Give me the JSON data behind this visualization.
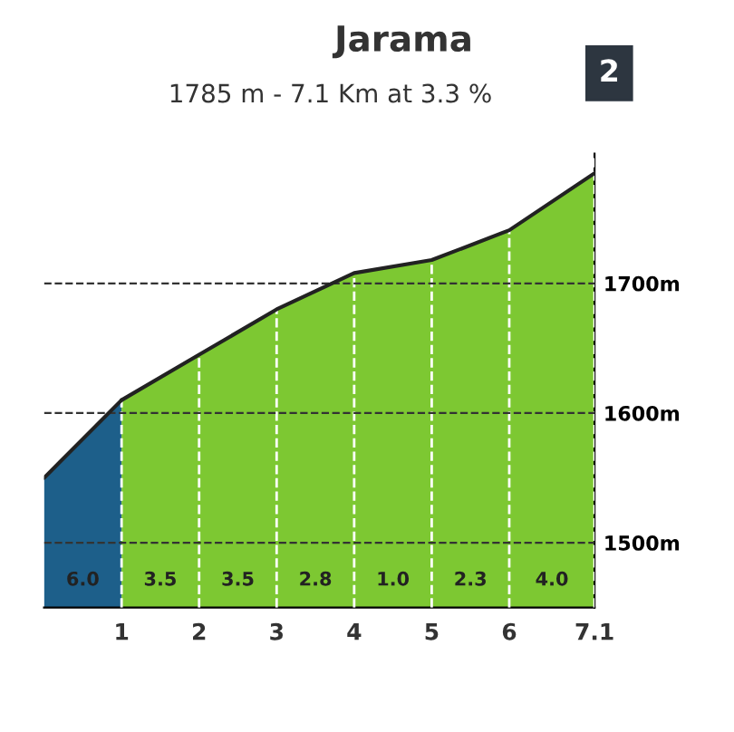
{
  "chart_data": {
    "type": "area",
    "title": "Jarama",
    "subtitle": "1785 m - 7.1 Km at 3.3 %",
    "series": [
      {
        "color": "#1d5f8a",
        "x": [
          0,
          1
        ],
        "values": [
          1550,
          1610
        ]
      },
      {
        "color": "#7dc832",
        "x": [
          1,
          2,
          3,
          4,
          5,
          6,
          7.1
        ],
        "values": [
          1610,
          1645,
          1680,
          1708,
          1718,
          1741,
          1785
        ]
      }
    ],
    "xlim": [
      0,
      7.1
    ],
    "xticks": [
      1,
      2,
      3,
      4,
      5,
      6,
      7.1
    ],
    "ylim": [
      1450,
      1800
    ],
    "yticks": [
      {
        "value": 1500,
        "label": "1500m"
      },
      {
        "value": 1600,
        "label": "1600m"
      },
      {
        "value": 1700,
        "label": "1700m"
      }
    ],
    "grid": true,
    "annotations": [
      "6.0",
      "3.5",
      "3.5",
      "2.8",
      "1.0",
      "2.3",
      "4.0",
      "2"
    ]
  }
}
